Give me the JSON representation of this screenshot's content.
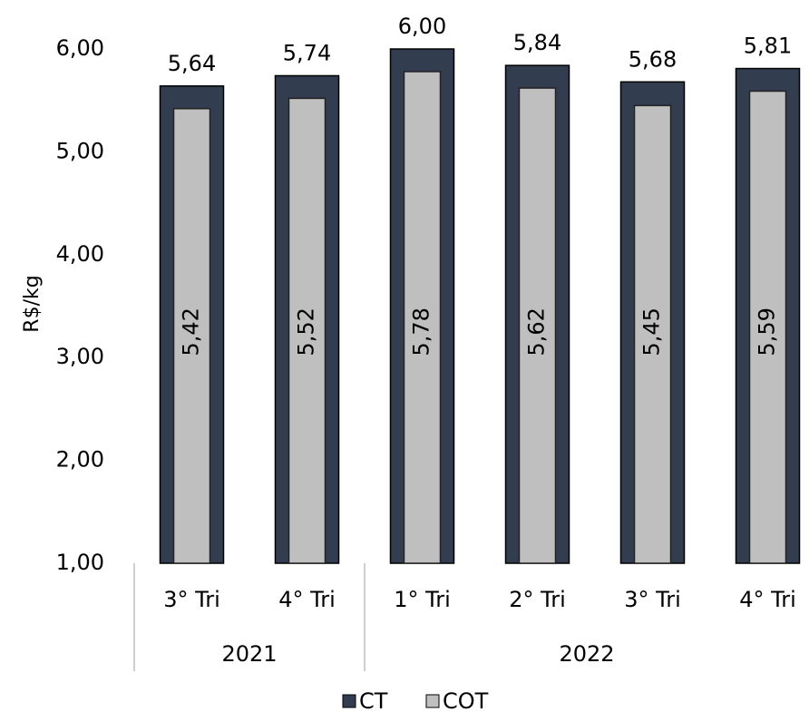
{
  "chart_data": {
    "type": "bar",
    "y_label": "R$/kg",
    "groups": [
      {
        "name": "2021",
        "categories": [
          "3° Tri",
          "4° Tri"
        ]
      },
      {
        "name": "2022",
        "categories": [
          "1° Tri",
          "2° Tri",
          "3° Tri",
          "4° Tri"
        ]
      }
    ],
    "series": [
      {
        "name": "CT",
        "color": "#323e4f",
        "values": [
          5.64,
          5.74,
          6.0,
          5.84,
          5.68,
          5.81
        ],
        "value_labels": [
          "5,64",
          "5,74",
          "6,00",
          "5,84",
          "5,68",
          "5,81"
        ]
      },
      {
        "name": "COT",
        "color": "#bfbfbf",
        "values": [
          5.42,
          5.52,
          5.78,
          5.62,
          5.45,
          5.59
        ],
        "value_labels": [
          "5,42",
          "5,52",
          "5,78",
          "5,62",
          "5,45",
          "5,59"
        ]
      }
    ],
    "ylim": [
      1,
      6
    ],
    "yticks": [
      {
        "value": 1,
        "label": "1,00"
      },
      {
        "value": 2,
        "label": "2,00"
      },
      {
        "value": 3,
        "label": "3,00"
      },
      {
        "value": 4,
        "label": "4,00"
      },
      {
        "value": 5,
        "label": "5,00"
      },
      {
        "value": 6,
        "label": "6,00"
      }
    ],
    "grid": false
  }
}
